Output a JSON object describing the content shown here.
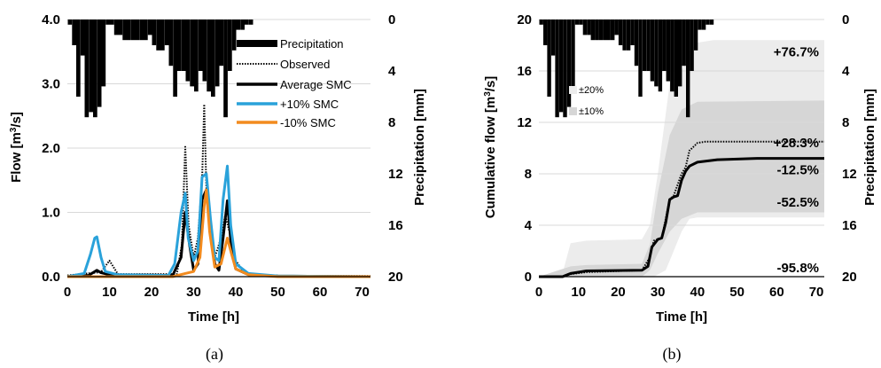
{
  "figure": {
    "label_a": "(a)",
    "label_b": "(b)"
  },
  "chart_data": [
    {
      "type": "line",
      "panel": "a",
      "xlabel": "Time [h]",
      "ylabel": "Flow [m³/s]",
      "ylabel_main": "Flow [m",
      "ylabel_sup": "3",
      "ylabel_end": "/s]",
      "y2label": "Precipitation [mm]",
      "xlim": [
        0,
        72
      ],
      "ylim": [
        0,
        4.0
      ],
      "y2lim": [
        20,
        0
      ],
      "xticks": [
        "0",
        "10",
        "20",
        "30",
        "40",
        "50",
        "60",
        "70"
      ],
      "yticks": [
        "0.0",
        "1.0",
        "2.0",
        "3.0",
        "4.0"
      ],
      "y2ticks": [
        "0",
        "4",
        "8",
        "12",
        "16",
        "20"
      ],
      "grid": true,
      "legend_position": "top-right",
      "precipitation": [
        [
          0,
          0.4
        ],
        [
          1,
          2.0
        ],
        [
          2,
          6.0
        ],
        [
          3,
          2.8
        ],
        [
          4,
          7.6
        ],
        [
          5,
          7.2
        ],
        [
          6,
          7.6
        ],
        [
          7,
          6.8
        ],
        [
          8,
          5.2
        ],
        [
          9,
          0.4
        ],
        [
          10,
          0.4
        ],
        [
          11,
          1.2
        ],
        [
          12,
          1.2
        ],
        [
          13,
          1.6
        ],
        [
          14,
          1.6
        ],
        [
          15,
          1.6
        ],
        [
          16,
          1.6
        ],
        [
          17,
          1.6
        ],
        [
          18,
          1.6
        ],
        [
          19,
          1.2
        ],
        [
          20,
          2.0
        ],
        [
          21,
          2.4
        ],
        [
          22,
          2.4
        ],
        [
          23,
          2.0
        ],
        [
          24,
          3.6
        ],
        [
          25,
          6.0
        ],
        [
          26,
          4.0
        ],
        [
          27,
          4.0
        ],
        [
          28,
          4.8
        ],
        [
          29,
          5.2
        ],
        [
          30,
          5.6
        ],
        [
          31,
          4.0
        ],
        [
          32,
          4.8
        ],
        [
          33,
          5.6
        ],
        [
          34,
          6.0
        ],
        [
          35,
          5.2
        ],
        [
          36,
          3.6
        ],
        [
          37,
          7.6
        ],
        [
          38,
          4.0
        ],
        [
          39,
          2.4
        ],
        [
          40,
          0.8
        ],
        [
          41,
          0.8
        ],
        [
          42,
          0.4
        ],
        [
          43,
          0.4
        ]
      ],
      "series": [
        {
          "name": "Precipitation",
          "color": "#000000"
        },
        {
          "name": "Observed",
          "color": "#000000",
          "style": "dotted",
          "points": [
            [
              0,
              0.02
            ],
            [
              8,
              0.07
            ],
            [
              10,
              0.25
            ],
            [
              12,
              0.04
            ],
            [
              26,
              0.04
            ],
            [
              27.2,
              0.5
            ],
            [
              28,
              2.02
            ],
            [
              28.8,
              0.8
            ],
            [
              30,
              0.3
            ],
            [
              31,
              0.6
            ],
            [
              32,
              1.5
            ],
            [
              32.5,
              2.68
            ],
            [
              33,
              1.4
            ],
            [
              33.6,
              0.9
            ],
            [
              35,
              0.3
            ],
            [
              36.5,
              0.6
            ],
            [
              37.5,
              0.95
            ],
            [
              38.5,
              0.7
            ],
            [
              40,
              0.25
            ],
            [
              42,
              0.06
            ],
            [
              45,
              0.02
            ],
            [
              55,
              0.01
            ],
            [
              72,
              0.01
            ]
          ]
        },
        {
          "name": "Average SMC",
          "color": "#000000",
          "points": [
            [
              0,
              0.0
            ],
            [
              5,
              0.02
            ],
            [
              7,
              0.1
            ],
            [
              8,
              0.06
            ],
            [
              10,
              0.03
            ],
            [
              25,
              0.02
            ],
            [
              27,
              0.3
            ],
            [
              28,
              1.0
            ],
            [
              29,
              0.5
            ],
            [
              30,
              0.1
            ],
            [
              31,
              0.2
            ],
            [
              32,
              1.2
            ],
            [
              33,
              1.35
            ],
            [
              34,
              0.7
            ],
            [
              35,
              0.2
            ],
            [
              36,
              0.1
            ],
            [
              37,
              0.6
            ],
            [
              38,
              1.18
            ],
            [
              39,
              0.4
            ],
            [
              40,
              0.12
            ],
            [
              43,
              0.03
            ],
            [
              50,
              0.01
            ],
            [
              72,
              0.0
            ]
          ]
        },
        {
          "name": "+10% SMC",
          "color": "#2aa2da",
          "points": [
            [
              0,
              0.0
            ],
            [
              4,
              0.05
            ],
            [
              5.5,
              0.35
            ],
            [
              6.5,
              0.6
            ],
            [
              7,
              0.62
            ],
            [
              8,
              0.3
            ],
            [
              9,
              0.08
            ],
            [
              12,
              0.03
            ],
            [
              24,
              0.02
            ],
            [
              25.5,
              0.2
            ],
            [
              27,
              1.0
            ],
            [
              28,
              1.3
            ],
            [
              28.7,
              0.6
            ],
            [
              30,
              0.25
            ],
            [
              31,
              0.4
            ],
            [
              32,
              1.55
            ],
            [
              33,
              1.6
            ],
            [
              34,
              0.9
            ],
            [
              35,
              0.3
            ],
            [
              36,
              0.25
            ],
            [
              37,
              1.2
            ],
            [
              38,
              1.72
            ],
            [
              38.8,
              0.8
            ],
            [
              40,
              0.2
            ],
            [
              43,
              0.05
            ],
            [
              50,
              0.01
            ],
            [
              72,
              0.0
            ]
          ]
        },
        {
          "name": "-10% SMC",
          "color": "#f28b1f",
          "points": [
            [
              0,
              0.0
            ],
            [
              25,
              0.0
            ],
            [
              28,
              0.05
            ],
            [
              30,
              0.08
            ],
            [
              31.5,
              0.3
            ],
            [
              32.5,
              1.1
            ],
            [
              33,
              1.35
            ],
            [
              33.8,
              0.7
            ],
            [
              35,
              0.15
            ],
            [
              36.5,
              0.2
            ],
            [
              38,
              0.6
            ],
            [
              39,
              0.35
            ],
            [
              40,
              0.12
            ],
            [
              43,
              0.03
            ],
            [
              50,
              0.0
            ],
            [
              72,
              0.0
            ]
          ]
        }
      ]
    },
    {
      "type": "line",
      "panel": "b",
      "xlabel": "Time [h]",
      "ylabel": "Cumulative flow [m³/s]",
      "ylabel_main": "Cumulative flow [m",
      "ylabel_sup": "3",
      "ylabel_end": "/s]",
      "y2label": "Precipitation [mm]",
      "xlim": [
        0,
        72
      ],
      "ylim": [
        0,
        20
      ],
      "y2lim": [
        20,
        0
      ],
      "xticks": [
        "0",
        "10",
        "20",
        "30",
        "40",
        "50",
        "60",
        "70"
      ],
      "yticks": [
        "0",
        "4",
        "8",
        "12",
        "16",
        "20"
      ],
      "y2ticks": [
        "0",
        "4",
        "8",
        "12",
        "16",
        "20"
      ],
      "grid": true,
      "bands": [
        {
          "name": "±20%",
          "color": "#ececec",
          "lower": [
            [
              0,
              0
            ],
            [
              6,
              0
            ],
            [
              8,
              0
            ],
            [
              20,
              0
            ],
            [
              27,
              0
            ],
            [
              29,
              0
            ],
            [
              32,
              0.5
            ],
            [
              34,
              2
            ],
            [
              36,
              3.5
            ],
            [
              38,
              4.5
            ],
            [
              40,
              4.6
            ],
            [
              72,
              4.6
            ]
          ],
          "upper": [
            [
              0,
              0
            ],
            [
              6,
              0.3
            ],
            [
              8,
              2.6
            ],
            [
              12,
              2.8
            ],
            [
              26,
              2.9
            ],
            [
              28,
              4
            ],
            [
              30,
              8
            ],
            [
              33,
              15
            ],
            [
              36,
              16
            ],
            [
              38,
              17.5
            ],
            [
              40,
              18.2
            ],
            [
              44,
              18.4
            ],
            [
              72,
              18.4
            ]
          ]
        },
        {
          "name": "±10%",
          "color": "#d6d6d6",
          "lower": [
            [
              0,
              0
            ],
            [
              8,
              0
            ],
            [
              26,
              0
            ],
            [
              28,
              0.5
            ],
            [
              30,
              1.8
            ],
            [
              33,
              3.5
            ],
            [
              36,
              4.5
            ],
            [
              40,
              5.0
            ],
            [
              72,
              5.0
            ]
          ],
          "upper": [
            [
              0,
              0
            ],
            [
              8,
              0.8
            ],
            [
              12,
              0.9
            ],
            [
              26,
              1.0
            ],
            [
              28,
              2.5
            ],
            [
              30,
              6.5
            ],
            [
              33,
              11
            ],
            [
              36,
              13
            ],
            [
              40,
              13.6
            ],
            [
              72,
              13.7
            ]
          ]
        }
      ],
      "series": [
        {
          "name": "Observed",
          "color": "#000000",
          "style": "dotted",
          "points": [
            [
              0,
              0
            ],
            [
              6,
              0
            ],
            [
              8,
              0.2
            ],
            [
              12,
              0.35
            ],
            [
              26,
              0.5
            ],
            [
              28,
              1.5
            ],
            [
              29,
              2.8
            ],
            [
              31,
              3.0
            ],
            [
              32,
              4.5
            ],
            [
              33,
              6.0
            ],
            [
              34,
              6.3
            ],
            [
              36,
              8.0
            ],
            [
              37,
              8.5
            ],
            [
              38,
              9.8
            ],
            [
              40,
              10.4
            ],
            [
              42,
              10.5
            ],
            [
              72,
              10.5
            ]
          ]
        },
        {
          "name": "Average",
          "color": "#000000",
          "points": [
            [
              0,
              0
            ],
            [
              6,
              0
            ],
            [
              8,
              0.25
            ],
            [
              12,
              0.45
            ],
            [
              26,
              0.5
            ],
            [
              27.5,
              0.8
            ],
            [
              28.5,
              2.3
            ],
            [
              30,
              2.9
            ],
            [
              31,
              3.0
            ],
            [
              32,
              4.2
            ],
            [
              33,
              6.0
            ],
            [
              34,
              6.2
            ],
            [
              35,
              6.3
            ],
            [
              36,
              7.5
            ],
            [
              37,
              8.2
            ],
            [
              38,
              8.6
            ],
            [
              40,
              8.9
            ],
            [
              45,
              9.1
            ],
            [
              55,
              9.2
            ],
            [
              72,
              9.2
            ]
          ]
        }
      ],
      "annotations": [
        "+76.7%",
        "+28.3%",
        "-12.5%",
        "-52.5%",
        "-95.8%"
      ],
      "annotation_y": [
        17.5,
        10.4,
        8.3,
        5.8,
        0.7
      ],
      "precipitation": [
        [
          0,
          0.4
        ],
        [
          1,
          2.0
        ],
        [
          2,
          6.0
        ],
        [
          3,
          2.8
        ],
        [
          4,
          7.6
        ],
        [
          5,
          7.2
        ],
        [
          6,
          7.6
        ],
        [
          7,
          6.8
        ],
        [
          8,
          5.2
        ],
        [
          9,
          0.4
        ],
        [
          10,
          0.4
        ],
        [
          11,
          1.2
        ],
        [
          12,
          1.2
        ],
        [
          13,
          1.6
        ],
        [
          14,
          1.6
        ],
        [
          15,
          1.6
        ],
        [
          16,
          1.6
        ],
        [
          17,
          1.6
        ],
        [
          18,
          1.6
        ],
        [
          19,
          1.2
        ],
        [
          20,
          2.0
        ],
        [
          21,
          2.4
        ],
        [
          22,
          2.4
        ],
        [
          23,
          2.0
        ],
        [
          24,
          3.6
        ],
        [
          25,
          6.0
        ],
        [
          26,
          4.0
        ],
        [
          27,
          4.0
        ],
        [
          28,
          4.8
        ],
        [
          29,
          5.2
        ],
        [
          30,
          5.6
        ],
        [
          31,
          4.0
        ],
        [
          32,
          4.8
        ],
        [
          33,
          5.6
        ],
        [
          34,
          6.0
        ],
        [
          35,
          5.2
        ],
        [
          36,
          3.6
        ],
        [
          37,
          7.6
        ],
        [
          38,
          4.0
        ],
        [
          39,
          2.4
        ],
        [
          40,
          0.8
        ],
        [
          41,
          0.8
        ],
        [
          42,
          0.4
        ],
        [
          43,
          0.4
        ]
      ]
    }
  ]
}
